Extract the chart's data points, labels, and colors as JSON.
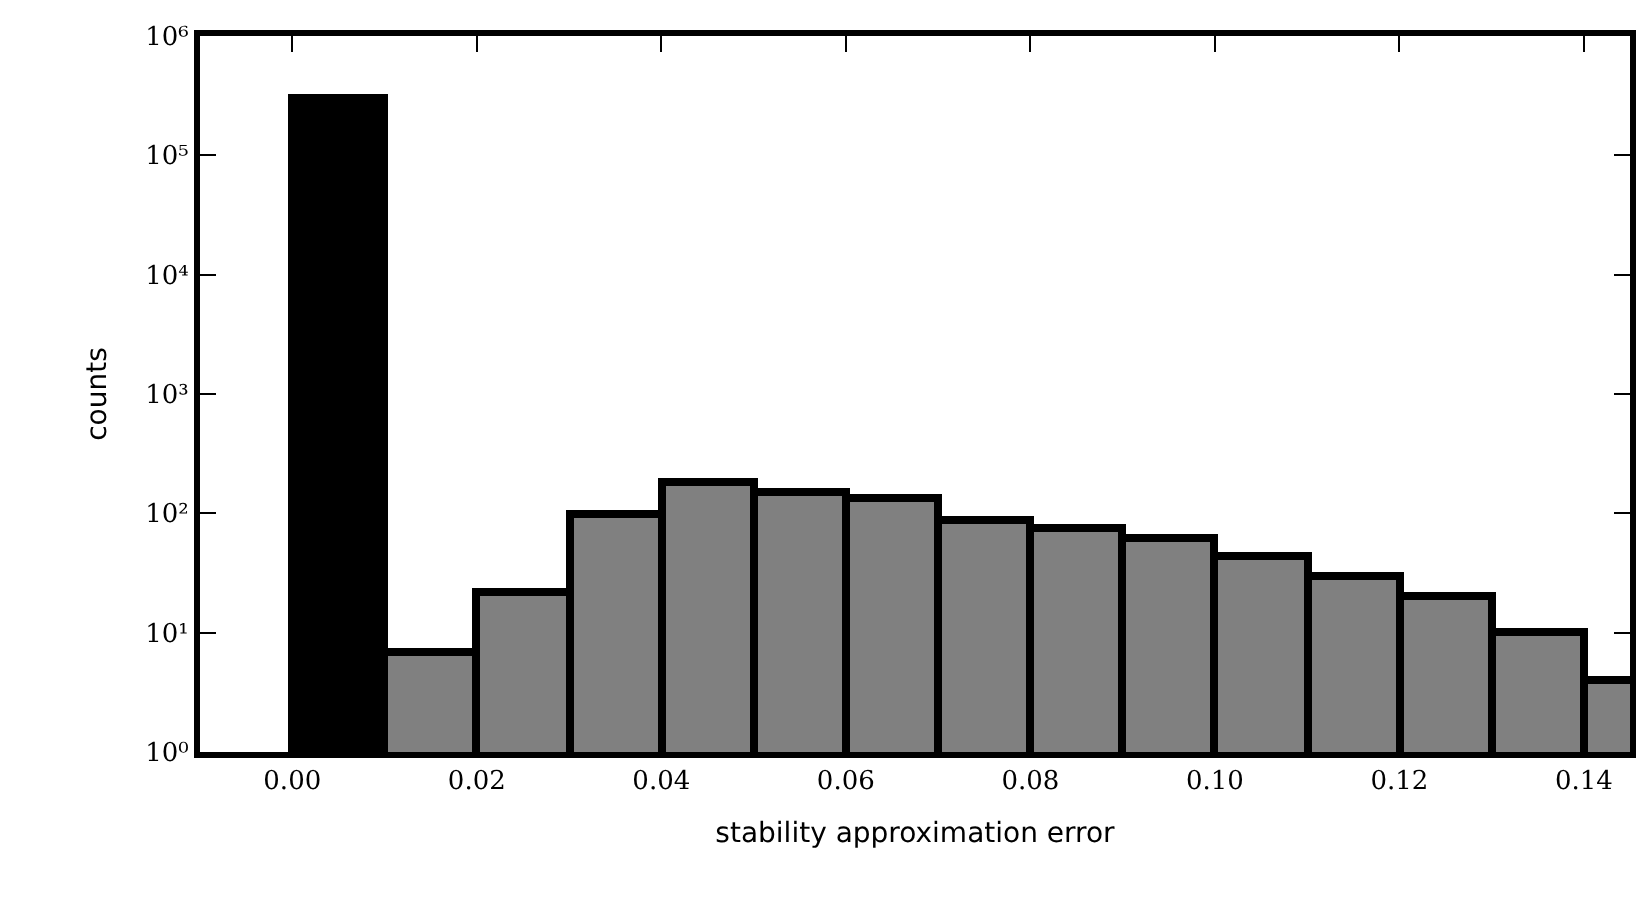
{
  "chart_data": {
    "type": "histogram",
    "xlabel": "stability approximation error",
    "ylabel": "counts",
    "bins": [
      0,
      0.01,
      0.02,
      0.03,
      0.04,
      0.05,
      0.06,
      0.07,
      0.08,
      0.09,
      0.1,
      0.11,
      0.12,
      0.13,
      0.14,
      0.15
    ],
    "values": [
      300000,
      7,
      22,
      100,
      180,
      150,
      135,
      88,
      75,
      62,
      44,
      30,
      20,
      10,
      4
    ],
    "colors": [
      "#000000",
      "#808080",
      "#808080",
      "#808080",
      "#808080",
      "#808080",
      "#808080",
      "#808080",
      "#808080",
      "#808080",
      "#808080",
      "#808080",
      "#808080",
      "#808080",
      "#808080"
    ],
    "log": "y",
    "grid": false,
    "xlim": [
      -0.01,
      0.145
    ],
    "xticks": [
      {
        "value": 0,
        "label": "0.00"
      },
      {
        "value": 0.02,
        "label": "0.02"
      },
      {
        "value": 0.04,
        "label": "0.04"
      },
      {
        "value": 0.06,
        "label": "0.06"
      },
      {
        "value": 0.08,
        "label": "0.08"
      },
      {
        "value": 0.1,
        "label": "0.10"
      },
      {
        "value": 0.12,
        "label": "0.12"
      },
      {
        "value": 0.14,
        "label": "0.14"
      }
    ],
    "ylim": [
      1,
      1000000
    ],
    "yticks": [
      {
        "value": 1,
        "label": "10⁰"
      },
      {
        "value": 10,
        "label": "10¹"
      },
      {
        "value": 100,
        "label": "10²"
      },
      {
        "value": 1000,
        "label": "10³"
      },
      {
        "value": 10000,
        "label": "10⁴"
      },
      {
        "value": 100000,
        "label": "10⁵"
      },
      {
        "value": 1000000,
        "label": "10⁶"
      }
    ]
  }
}
